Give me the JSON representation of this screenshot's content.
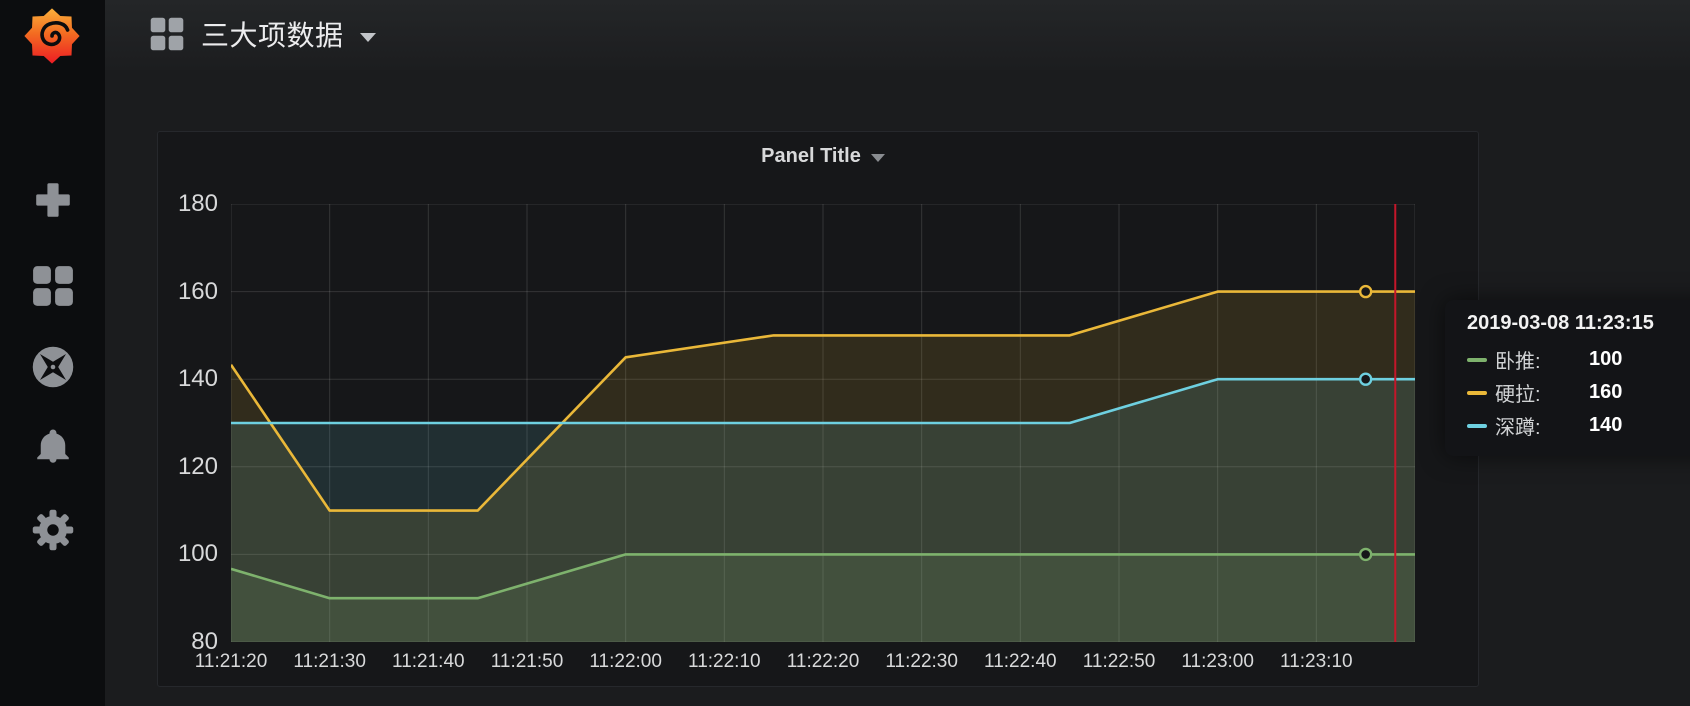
{
  "header": {
    "title": "三大项数据"
  },
  "sidebar": {
    "logo": "grafana-logo",
    "items": [
      {
        "name": "create",
        "icon": "plus-icon"
      },
      {
        "name": "dashboards",
        "icon": "grid-icon"
      },
      {
        "name": "explore",
        "icon": "compass-icon"
      },
      {
        "name": "alerting",
        "icon": "bell-icon"
      },
      {
        "name": "configuration",
        "icon": "gear-icon"
      }
    ]
  },
  "panel": {
    "title": "Panel Title"
  },
  "chart_data": {
    "type": "line",
    "title": "Panel Title",
    "x_tick_labels": [
      "11:21:20",
      "11:21:30",
      "11:21:40",
      "11:21:50",
      "11:22:00",
      "11:22:10",
      "11:22:20",
      "11:22:30",
      "11:22:40",
      "11:22:50",
      "11:23:00",
      "11:23:10"
    ],
    "x_tick_seconds": [
      0,
      10,
      20,
      30,
      40,
      50,
      60,
      70,
      80,
      90,
      100,
      110
    ],
    "x_domain_seconds": [
      0,
      120
    ],
    "y_ticks": [
      80,
      100,
      120,
      140,
      160,
      180
    ],
    "ylim": [
      80,
      180
    ],
    "grid": true,
    "fill_opacity": 0.13,
    "line_width": 2.6,
    "series": [
      {
        "name": "卧推",
        "color": "#7eb26d",
        "points": [
          [
            0,
            96.7
          ],
          [
            10,
            90
          ],
          [
            25,
            90
          ],
          [
            40,
            100
          ],
          [
            55,
            100
          ],
          [
            70,
            100
          ],
          [
            85,
            100
          ],
          [
            100,
            100
          ],
          [
            115,
            100
          ],
          [
            120,
            100
          ]
        ],
        "marker_t": 115,
        "marker_value": 100
      },
      {
        "name": "硬拉",
        "color": "#eab839",
        "points": [
          [
            0,
            143.3
          ],
          [
            10,
            110
          ],
          [
            25,
            110
          ],
          [
            40,
            145
          ],
          [
            55,
            150
          ],
          [
            70,
            150
          ],
          [
            85,
            150
          ],
          [
            100,
            160
          ],
          [
            115,
            160
          ],
          [
            120,
            160
          ]
        ],
        "marker_t": 115,
        "marker_value": 160
      },
      {
        "name": "深蹲",
        "color": "#6ed0e0",
        "points": [
          [
            0,
            130
          ],
          [
            10,
            130
          ],
          [
            25,
            130
          ],
          [
            40,
            130
          ],
          [
            55,
            130
          ],
          [
            70,
            130
          ],
          [
            85,
            130
          ],
          [
            100,
            140
          ],
          [
            115,
            140
          ],
          [
            120,
            140
          ]
        ],
        "marker_t": 115,
        "marker_value": 140
      }
    ],
    "cursor": {
      "t": 118,
      "color": "#c4162a"
    }
  },
  "tooltip": {
    "timestamp": "2019-03-08 11:23:15",
    "rows": [
      {
        "label": "卧推:",
        "value": "100",
        "color": "#7eb26d"
      },
      {
        "label": "硬拉:",
        "value": "160",
        "color": "#eab839"
      },
      {
        "label": "深蹲:",
        "value": "140",
        "color": "#6ed0e0"
      }
    ]
  },
  "colors": {
    "background": "#1b1c1e",
    "sidebar": "#0c0d0f",
    "panel": "#161719",
    "axis_text": "#d8d9da",
    "grid": "rgba(255,255,255,0.13)",
    "cursor_red": "#c4162a"
  }
}
